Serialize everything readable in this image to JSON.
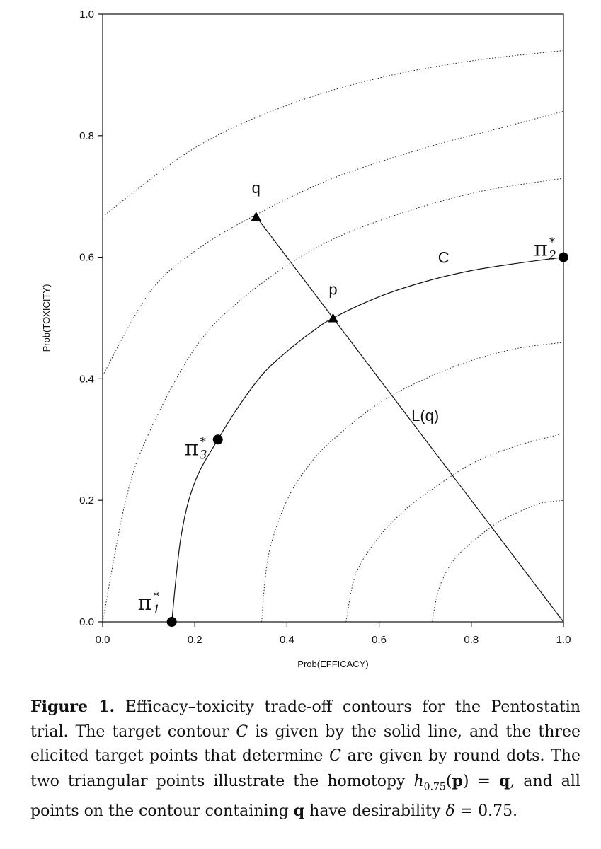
{
  "chart_data": {
    "type": "line",
    "xlabel": "Prob(EFFICACY)",
    "ylabel": "Prob(TOXICITY)",
    "xlim": [
      0.0,
      1.0
    ],
    "ylim": [
      0.0,
      1.0
    ],
    "x_ticks": [
      "0.0",
      "0.2",
      "0.4",
      "0.6",
      "0.8",
      "1.0"
    ],
    "y_ticks": [
      "0.0",
      "0.2",
      "0.4",
      "0.6",
      "0.8",
      "1.0"
    ],
    "grid": false,
    "dotted_contours": [
      {
        "name": "contour-1",
        "x": [
          0.0,
          0.2,
          0.4,
          0.6,
          0.8,
          1.0
        ],
        "y": [
          0.667,
          0.78,
          0.85,
          0.895,
          0.923,
          0.94
        ]
      },
      {
        "name": "contour-2",
        "x": [
          0.0,
          0.1,
          0.2,
          0.333,
          0.5,
          0.7,
          0.85,
          1.0
        ],
        "y": [
          0.405,
          0.54,
          0.61,
          0.67,
          0.73,
          0.78,
          0.81,
          0.84
        ]
      },
      {
        "name": "contour-3",
        "x": [
          0.0,
          0.05,
          0.1,
          0.2,
          0.3,
          0.45,
          0.6,
          0.8,
          1.0
        ],
        "y": [
          0.0,
          0.2,
          0.31,
          0.45,
          0.53,
          0.61,
          0.66,
          0.705,
          0.73
        ]
      },
      {
        "name": "contour-4",
        "x": [
          0.345,
          0.36,
          0.4,
          0.45,
          0.5,
          0.6,
          0.7,
          0.8,
          0.9,
          1.0
        ],
        "y": [
          0.0,
          0.11,
          0.2,
          0.26,
          0.3,
          0.36,
          0.4,
          0.43,
          0.45,
          0.46
        ]
      },
      {
        "name": "contour-5",
        "x": [
          0.528,
          0.55,
          0.6,
          0.65,
          0.7,
          0.8,
          0.9,
          1.0
        ],
        "y": [
          0.0,
          0.08,
          0.14,
          0.18,
          0.21,
          0.26,
          0.29,
          0.31
        ]
      },
      {
        "name": "contour-6",
        "x": [
          0.715,
          0.73,
          0.76,
          0.8,
          0.85,
          0.9,
          0.95,
          1.0
        ],
        "y": [
          0.0,
          0.055,
          0.1,
          0.13,
          0.16,
          0.18,
          0.195,
          0.2
        ]
      }
    ],
    "target_contour": {
      "name": "C",
      "x": [
        0.15,
        0.17,
        0.2,
        0.25,
        0.3,
        0.35,
        0.4,
        0.45,
        0.5,
        0.6,
        0.7,
        0.8,
        0.9,
        1.0
      ],
      "y": [
        0.0,
        0.14,
        0.23,
        0.3,
        0.36,
        0.41,
        0.445,
        0.475,
        0.5,
        0.535,
        0.56,
        0.578,
        0.59,
        0.6
      ]
    },
    "line_Lq": {
      "name": "L(q)",
      "x": [
        0.333,
        1.0
      ],
      "y": [
        0.667,
        0.0
      ]
    },
    "target_points": [
      {
        "label": "π",
        "sup": "*",
        "sub": "1",
        "x": 0.15,
        "y": 0.0
      },
      {
        "label": "π",
        "sup": "*",
        "sub": "3",
        "x": 0.25,
        "y": 0.3
      },
      {
        "label": "π",
        "sup": "*",
        "sub": "2",
        "x": 1.0,
        "y": 0.6
      }
    ],
    "triangle_points": [
      {
        "label": "q",
        "x": 0.333,
        "y": 0.667
      },
      {
        "label": "p",
        "x": 0.5,
        "y": 0.5
      }
    ],
    "annotations": [
      {
        "text": "C",
        "x": 0.74,
        "y": 0.6
      },
      {
        "text": "L(q)",
        "x": 0.7,
        "y": 0.34
      }
    ]
  },
  "caption": {
    "label": "Figure 1.",
    "t1": " Efficacy–toxicity trade-off contours for the Pentostatin trial. The target contour ",
    "calC1": "C",
    "t2": " is given by the solid line, and the three elicited target points that determine ",
    "calC2": "C",
    "t3": " are given by round dots. The two triangular points illustrate the homotopy ",
    "h": "h",
    "hsub": "0.75",
    "t4": "(",
    "p": "p",
    "t5": ") = ",
    "q1": "q",
    "t6": ", and all points on the contour containing ",
    "q2": "q",
    "t7": " have desirability ",
    "delta": "δ",
    "t8": " = 0.75."
  }
}
